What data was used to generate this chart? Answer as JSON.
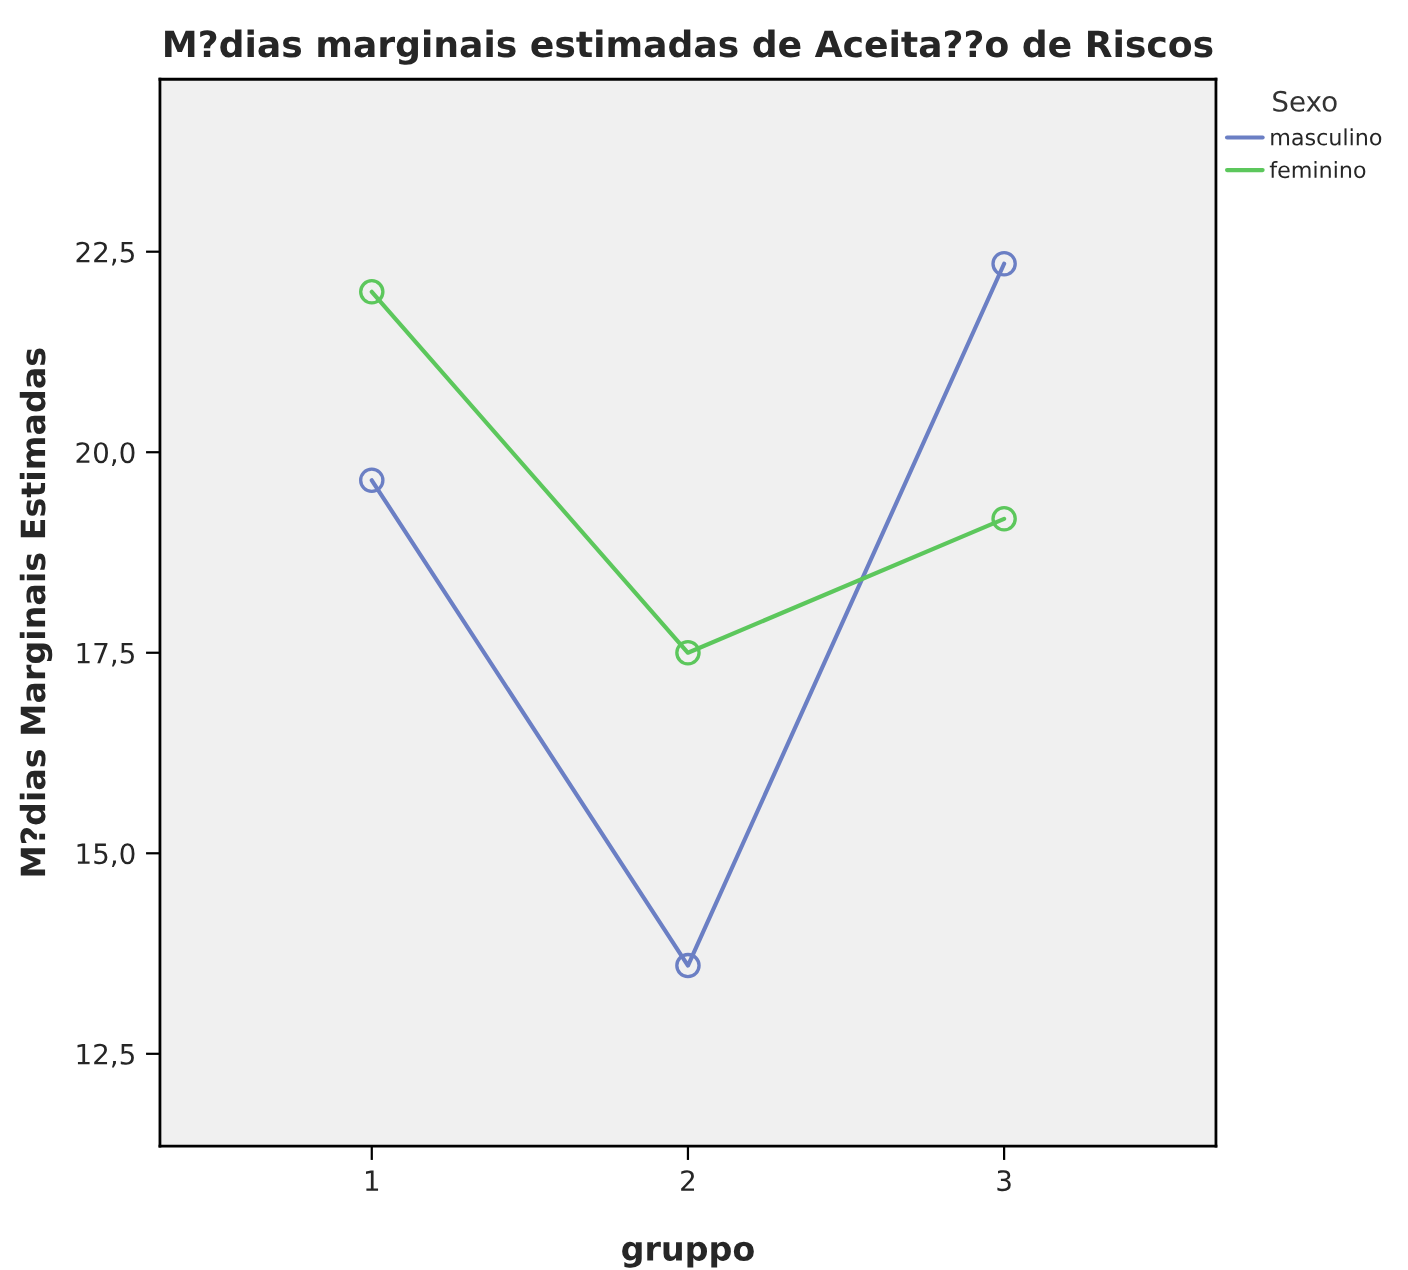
{
  "chart_data": {
    "type": "line",
    "title": "M?dias marginais estimadas de Aceita??o de Riscos",
    "xlabel": "gruppo",
    "ylabel": "M?dias Marginais Estimadas",
    "legend_title": "Sexo",
    "categories": [
      "1",
      "2",
      "3"
    ],
    "series": [
      {
        "name": "masculino",
        "color": "#6b7fc4",
        "values": [
          19.65,
          13.6,
          22.35
        ]
      },
      {
        "name": "feminino",
        "color": "#5cc75c",
        "values": [
          22.0,
          17.5,
          19.17
        ]
      }
    ],
    "ylim": [
      11.35,
      24.65
    ],
    "yticks": [
      {
        "value": 12.5,
        "label": "12,5"
      },
      {
        "value": 15.0,
        "label": "15,0"
      },
      {
        "value": 17.5,
        "label": "17,5"
      },
      {
        "value": 20.0,
        "label": "20,0"
      },
      {
        "value": 22.5,
        "label": "22,5"
      }
    ],
    "marker": "circle",
    "line_style": "solid",
    "grid": false,
    "legend": "top right"
  }
}
